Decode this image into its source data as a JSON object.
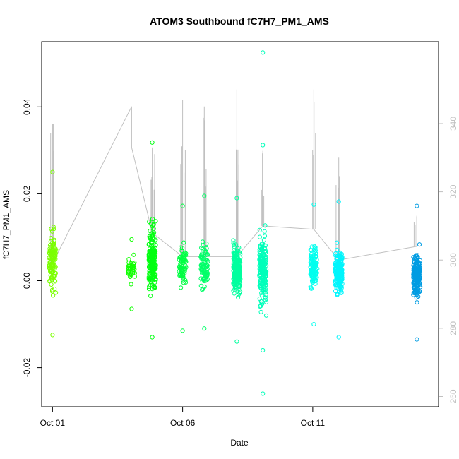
{
  "chart_data": {
    "type": "scatter",
    "title": "ATOM3 Southbound fC7H7_PM1_AMS",
    "xlabel": "Date",
    "ylabel": "fC7H7_PM1_AMS",
    "x_ticks": [
      "Oct 01",
      "Oct 06",
      "Oct 11"
    ],
    "y_ticks": [
      "-0.02",
      "0.00",
      "0.02",
      "0.04"
    ],
    "y_ticks_values": [
      -0.02,
      0.0,
      0.02,
      0.04
    ],
    "ylim": [
      -0.029,
      0.055
    ],
    "right_axis_ticks": [
      "260",
      "280",
      "300",
      "320",
      "340"
    ],
    "right_axis_values": [
      260,
      280,
      300,
      320,
      340
    ],
    "right_axis_lim": [
      257,
      364
    ],
    "xlim": [
      "2017-09-30T14:00",
      "2017-10-15T20:00"
    ],
    "grid": false,
    "legend": "none",
    "marker": "open-circle",
    "point_color_scale": [
      "#7fff00",
      "#00ff00",
      "#00ff9f",
      "#00ffff",
      "#0094e0"
    ],
    "right_series_color": "#c0c0c0",
    "clusters": [
      {
        "date": "2017-10-01T00:00",
        "mean": 0.0045,
        "min": -0.0125,
        "max": 0.025,
        "n": 110
      },
      {
        "date": "2017-10-04T01:00",
        "mean": 0.0025,
        "min": -0.0065,
        "max": 0.0095,
        "n": 40
      },
      {
        "date": "2017-10-04T20:00",
        "mean": 0.0045,
        "min": -0.013,
        "max": 0.0318,
        "n": 190
      },
      {
        "date": "2017-10-06T00:00",
        "mean": 0.003,
        "min": -0.0115,
        "max": 0.0172,
        "n": 70
      },
      {
        "date": "2017-10-06T20:00",
        "mean": 0.003,
        "min": -0.011,
        "max": 0.0195,
        "n": 80
      },
      {
        "date": "2017-10-08T02:00",
        "mean": 0.0025,
        "min": -0.014,
        "max": 0.019,
        "n": 220
      },
      {
        "date": "2017-10-09T02:00",
        "mean": 0.0025,
        "min": -0.016,
        "max": 0.0312,
        "n": 200
      },
      {
        "date": "2017-10-11T01:00",
        "mean": 0.0035,
        "min": -0.01,
        "max": 0.0175,
        "n": 120
      },
      {
        "date": "2017-10-12T00:00",
        "mean": 0.002,
        "min": -0.013,
        "max": 0.0182,
        "n": 190
      },
      {
        "date": "2017-10-15T00:00",
        "mean": 0.001,
        "min": -0.0135,
        "max": 0.0172,
        "n": 180
      }
    ],
    "outliers": [
      {
        "date": "2017-10-09T02:00",
        "y": 0.0525
      },
      {
        "date": "2017-10-09T02:00",
        "y": -0.026
      }
    ],
    "right_series": [
      {
        "date": "2017-10-01T00:00",
        "y": 299,
        "peak": 340
      },
      {
        "date": "2017-10-04T01:00",
        "y": 345,
        "peak": 345
      },
      {
        "date": "2017-10-04T01:00",
        "y": 333,
        "peak": 333
      },
      {
        "date": "2017-10-04T20:00",
        "y": 308,
        "peak": 333
      },
      {
        "date": "2017-10-06T00:00",
        "y": 301,
        "peak": 347
      },
      {
        "date": "2017-10-06T20:00",
        "y": 301,
        "peak": 345
      },
      {
        "date": "2017-10-08T02:00",
        "y": 301,
        "peak": 350
      },
      {
        "date": "2017-10-09T02:00",
        "y": 310,
        "peak": 332
      },
      {
        "date": "2017-10-11T01:00",
        "y": 309,
        "peak": 350
      },
      {
        "date": "2017-10-12T00:00",
        "y": 300,
        "peak": 330
      },
      {
        "date": "2017-10-15T00:00",
        "y": 304,
        "peak": 313
      }
    ]
  }
}
